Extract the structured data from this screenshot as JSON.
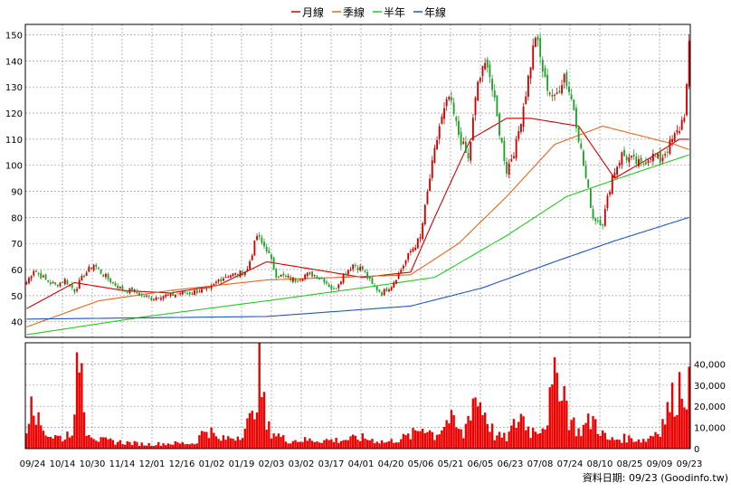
{
  "legend": [
    {
      "label": "月線",
      "color": "#d40000"
    },
    {
      "label": "季線",
      "color": "#e8661a"
    },
    {
      "label": "半年",
      "color": "#22cc22"
    },
    {
      "label": "年線",
      "color": "#1f56c4"
    }
  ],
  "footer": "資料日期: 09/23 (Goodinfo.tw)",
  "colors": {
    "up": "#d00000",
    "down": "#1fa12a",
    "volume": "#ee0000",
    "grid": "#999999"
  },
  "chart_data": [
    {
      "type": "candlestick",
      "title": "",
      "ylim": [
        34,
        154
      ],
      "y_ticks": [
        40,
        50,
        60,
        70,
        80,
        90,
        100,
        110,
        120,
        130,
        140,
        150
      ],
      "y_axis_side": "left",
      "grid": true,
      "legend_position": "top-center",
      "x_ticks": [
        "09/24",
        "10/14",
        "10/30",
        "11/14",
        "12/01",
        "12/16",
        "01/02",
        "01/19",
        "02/03",
        "03/02",
        "03/17",
        "04/01",
        "04/20",
        "05/06",
        "05/21",
        "06/05",
        "06/23",
        "07/08",
        "07/24",
        "08/10",
        "08/25",
        "09/09",
        "09/23"
      ],
      "close_anchors": [
        {
          "i": 0,
          "v": 55
        },
        {
          "i": 3,
          "v": 60
        },
        {
          "i": 8,
          "v": 56
        },
        {
          "i": 12,
          "v": 54
        },
        {
          "i": 16,
          "v": 56
        },
        {
          "i": 20,
          "v": 52
        },
        {
          "i": 24,
          "v": 58
        },
        {
          "i": 28,
          "v": 62
        },
        {
          "i": 32,
          "v": 58
        },
        {
          "i": 36,
          "v": 55
        },
        {
          "i": 40,
          "v": 52
        },
        {
          "i": 44,
          "v": 52
        },
        {
          "i": 48,
          "v": 50
        },
        {
          "i": 52,
          "v": 49
        },
        {
          "i": 56,
          "v": 50
        },
        {
          "i": 60,
          "v": 50
        },
        {
          "i": 64,
          "v": 51
        },
        {
          "i": 68,
          "v": 51
        },
        {
          "i": 72,
          "v": 52
        },
        {
          "i": 76,
          "v": 52
        },
        {
          "i": 80,
          "v": 56
        },
        {
          "i": 84,
          "v": 58
        },
        {
          "i": 88,
          "v": 58
        },
        {
          "i": 92,
          "v": 60
        },
        {
          "i": 96,
          "v": 73
        },
        {
          "i": 98,
          "v": 70
        },
        {
          "i": 100,
          "v": 68
        },
        {
          "i": 104,
          "v": 58
        },
        {
          "i": 108,
          "v": 57
        },
        {
          "i": 112,
          "v": 56
        },
        {
          "i": 116,
          "v": 58
        },
        {
          "i": 120,
          "v": 58
        },
        {
          "i": 124,
          "v": 56
        },
        {
          "i": 128,
          "v": 52
        },
        {
          "i": 132,
          "v": 58
        },
        {
          "i": 136,
          "v": 62
        },
        {
          "i": 140,
          "v": 60
        },
        {
          "i": 144,
          "v": 54
        },
        {
          "i": 148,
          "v": 51
        },
        {
          "i": 152,
          "v": 54
        },
        {
          "i": 156,
          "v": 60
        },
        {
          "i": 160,
          "v": 67
        },
        {
          "i": 164,
          "v": 72
        },
        {
          "i": 168,
          "v": 95
        },
        {
          "i": 172,
          "v": 115
        },
        {
          "i": 176,
          "v": 126
        },
        {
          "i": 180,
          "v": 112
        },
        {
          "i": 184,
          "v": 102
        },
        {
          "i": 188,
          "v": 132
        },
        {
          "i": 192,
          "v": 140
        },
        {
          "i": 196,
          "v": 118
        },
        {
          "i": 200,
          "v": 98
        },
        {
          "i": 204,
          "v": 108
        },
        {
          "i": 208,
          "v": 128
        },
        {
          "i": 212,
          "v": 150
        },
        {
          "i": 216,
          "v": 132
        },
        {
          "i": 220,
          "v": 125
        },
        {
          "i": 224,
          "v": 135
        },
        {
          "i": 228,
          "v": 122
        },
        {
          "i": 232,
          "v": 100
        },
        {
          "i": 236,
          "v": 80
        },
        {
          "i": 240,
          "v": 78
        },
        {
          "i": 244,
          "v": 96
        },
        {
          "i": 248,
          "v": 104
        },
        {
          "i": 252,
          "v": 102
        },
        {
          "i": 256,
          "v": 100
        },
        {
          "i": 260,
          "v": 104
        },
        {
          "i": 264,
          "v": 102
        },
        {
          "i": 268,
          "v": 108
        },
        {
          "i": 272,
          "v": 114
        },
        {
          "i": 274,
          "v": 120
        },
        {
          "i": 275,
          "v": 130
        },
        {
          "i": 276,
          "v": 145
        }
      ],
      "series": [
        {
          "name": "月線",
          "anchors": [
            {
              "i": 0,
              "v": 45
            },
            {
              "i": 20,
              "v": 55
            },
            {
              "i": 40,
              "v": 52
            },
            {
              "i": 60,
              "v": 51
            },
            {
              "i": 80,
              "v": 54
            },
            {
              "i": 100,
              "v": 63
            },
            {
              "i": 120,
              "v": 60
            },
            {
              "i": 140,
              "v": 57
            },
            {
              "i": 160,
              "v": 59
            },
            {
              "i": 170,
              "v": 80
            },
            {
              "i": 185,
              "v": 110
            },
            {
              "i": 200,
              "v": 118
            },
            {
              "i": 210,
              "v": 118
            },
            {
              "i": 230,
              "v": 115
            },
            {
              "i": 245,
              "v": 95
            },
            {
              "i": 260,
              "v": 103
            },
            {
              "i": 272,
              "v": 110
            },
            {
              "i": 276,
              "v": 110
            }
          ]
        },
        {
          "name": "季線",
          "anchors": [
            {
              "i": 0,
              "v": 38
            },
            {
              "i": 30,
              "v": 48
            },
            {
              "i": 60,
              "v": 52
            },
            {
              "i": 100,
              "v": 56
            },
            {
              "i": 130,
              "v": 57
            },
            {
              "i": 160,
              "v": 58
            },
            {
              "i": 180,
              "v": 70
            },
            {
              "i": 200,
              "v": 88
            },
            {
              "i": 220,
              "v": 108
            },
            {
              "i": 240,
              "v": 115
            },
            {
              "i": 270,
              "v": 108
            },
            {
              "i": 276,
              "v": 106
            }
          ]
        },
        {
          "name": "半年",
          "anchors": [
            {
              "i": 0,
              "v": 35
            },
            {
              "i": 50,
              "v": 42
            },
            {
              "i": 100,
              "v": 48
            },
            {
              "i": 140,
              "v": 53
            },
            {
              "i": 170,
              "v": 57
            },
            {
              "i": 200,
              "v": 73
            },
            {
              "i": 225,
              "v": 88
            },
            {
              "i": 250,
              "v": 96
            },
            {
              "i": 276,
              "v": 104
            }
          ]
        },
        {
          "name": "年線",
          "anchors": [
            {
              "i": 0,
              "v": 41
            },
            {
              "i": 100,
              "v": 42
            },
            {
              "i": 160,
              "v": 46
            },
            {
              "i": 190,
              "v": 53
            },
            {
              "i": 220,
              "v": 63
            },
            {
              "i": 245,
              "v": 71
            },
            {
              "i": 276,
              "v": 80
            }
          ]
        }
      ]
    },
    {
      "type": "bar",
      "title": "",
      "ylim": [
        0,
        50000
      ],
      "y_ticks": [
        0,
        10000,
        20000,
        30000,
        40000
      ],
      "y_tick_labels": [
        "0",
        "10,000",
        "20,000",
        "30,000",
        "40,000"
      ],
      "y_axis_side": "right",
      "grid": true,
      "bar_count": 277,
      "volume_anchors": [
        {
          "i": 0,
          "v": 8000
        },
        {
          "i": 2,
          "v": 34000
        },
        {
          "i": 5,
          "v": 12000
        },
        {
          "i": 10,
          "v": 6000
        },
        {
          "i": 16,
          "v": 5000
        },
        {
          "i": 20,
          "v": 12000
        },
        {
          "i": 22,
          "v": 52000
        },
        {
          "i": 25,
          "v": 10000
        },
        {
          "i": 30,
          "v": 4000
        },
        {
          "i": 40,
          "v": 3000
        },
        {
          "i": 50,
          "v": 2000
        },
        {
          "i": 60,
          "v": 2500
        },
        {
          "i": 70,
          "v": 2500
        },
        {
          "i": 75,
          "v": 10000
        },
        {
          "i": 80,
          "v": 4000
        },
        {
          "i": 88,
          "v": 6000
        },
        {
          "i": 94,
          "v": 14000
        },
        {
          "i": 97,
          "v": 38000
        },
        {
          "i": 100,
          "v": 10000
        },
        {
          "i": 108,
          "v": 4000
        },
        {
          "i": 120,
          "v": 4000
        },
        {
          "i": 130,
          "v": 4000
        },
        {
          "i": 140,
          "v": 5000
        },
        {
          "i": 150,
          "v": 3000
        },
        {
          "i": 160,
          "v": 6000
        },
        {
          "i": 166,
          "v": 11000
        },
        {
          "i": 170,
          "v": 6000
        },
        {
          "i": 176,
          "v": 14000
        },
        {
          "i": 182,
          "v": 6000
        },
        {
          "i": 186,
          "v": 25000
        },
        {
          "i": 190,
          "v": 20000
        },
        {
          "i": 195,
          "v": 6000
        },
        {
          "i": 200,
          "v": 5000
        },
        {
          "i": 206,
          "v": 16000
        },
        {
          "i": 210,
          "v": 8000
        },
        {
          "i": 216,
          "v": 12000
        },
        {
          "i": 222,
          "v": 39000
        },
        {
          "i": 226,
          "v": 15000
        },
        {
          "i": 230,
          "v": 8000
        },
        {
          "i": 236,
          "v": 14000
        },
        {
          "i": 242,
          "v": 4000
        },
        {
          "i": 250,
          "v": 5000
        },
        {
          "i": 258,
          "v": 4000
        },
        {
          "i": 264,
          "v": 10000
        },
        {
          "i": 268,
          "v": 20000
        },
        {
          "i": 272,
          "v": 30000
        },
        {
          "i": 276,
          "v": 31000
        }
      ],
      "series": [
        {
          "name": "",
          "values": []
        }
      ]
    }
  ]
}
